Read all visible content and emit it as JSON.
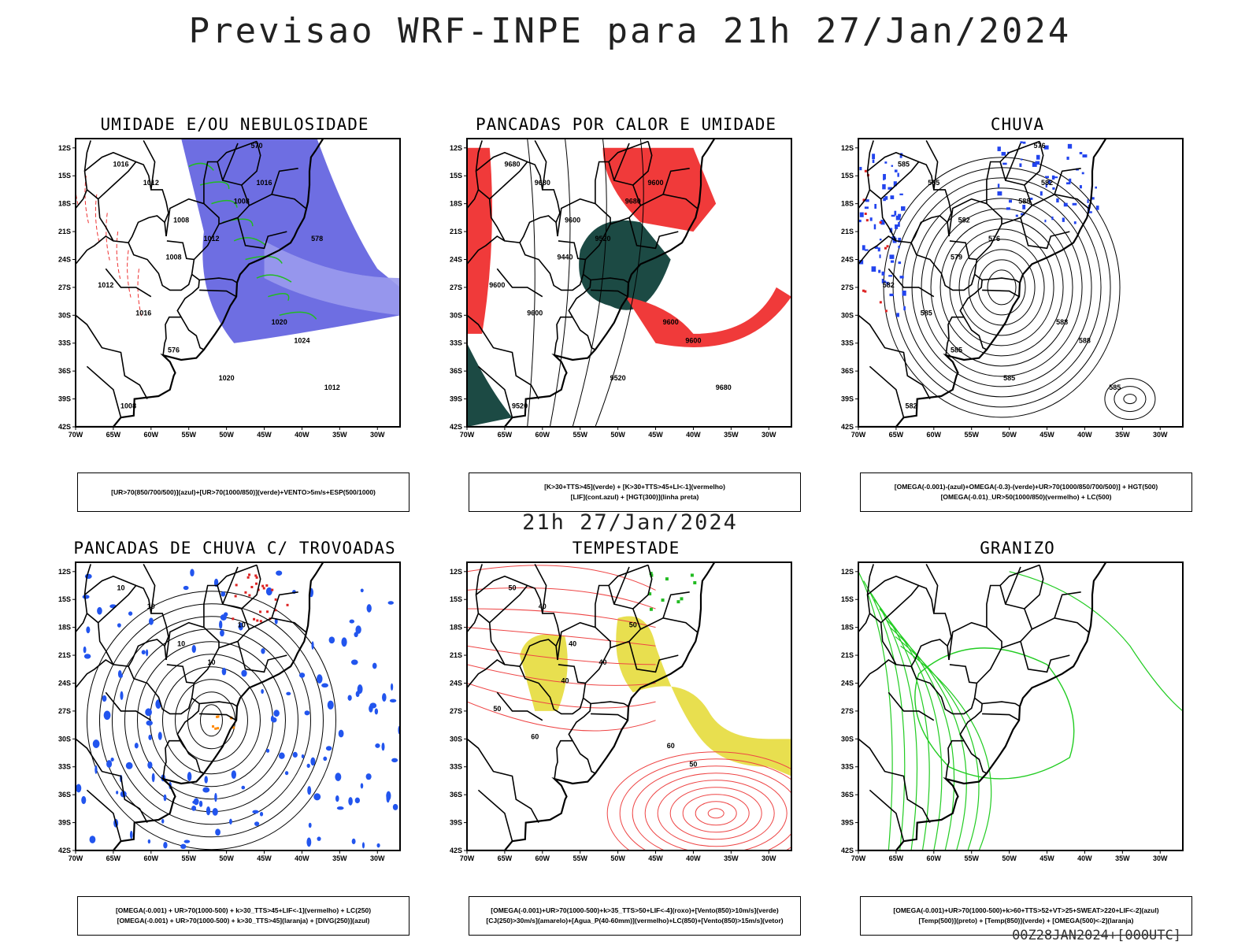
{
  "title": "Previsao WRF-INPE  para 21h 27/Jan/2024",
  "subtitle": "21h 27/Jan/2024",
  "footer": "00Z28JAN2024+[000UTC]",
  "axes": {
    "lat_labels": [
      "12S",
      "15S",
      "18S",
      "21S",
      "24S",
      "27S",
      "30S",
      "33S",
      "36S",
      "39S",
      "42S"
    ],
    "lon_labels": [
      "70W",
      "65W",
      "60W",
      "55W",
      "50W",
      "45W",
      "40W",
      "35W",
      "30W"
    ]
  },
  "panels": [
    {
      "title": "UMIDADE E/OU NEBULOSIDADE",
      "legend": [
        "[UR>70(850/700/500)](azul)+[UR>70(1000/850)](verde)+VENTO>5m/s+ESP(500/1000)"
      ],
      "contour_labels": [
        "1016",
        "1012",
        "1008",
        "1008",
        "1012",
        "1008",
        "1012",
        "1016",
        "1020",
        "1024",
        "1008",
        "1012",
        "1016",
        "1020",
        "570",
        "576",
        "578"
      ],
      "colors": {
        "fill": "#5555dd",
        "fill2": "#9a9aee",
        "line": "#22bb22",
        "accent": "#ee3333"
      }
    },
    {
      "title": "PANCADAS POR CALOR E UMIDADE",
      "legend": [
        "[K>30+TTS>45](verde) + [K>30+TTS>45+LI<-1](vermelho)",
        "[LIF](cont.azul) + [HGT(300)](linha preta)"
      ],
      "contour_labels": [
        "9680",
        "9680",
        "9600",
        "9680",
        "9520",
        "9440",
        "9600",
        "9600",
        "9600",
        "9600",
        "9520",
        "9680",
        "9600",
        "9520"
      ],
      "colors": {
        "fill": "#1c4a44",
        "fill2": "#f03a3a",
        "line": "#2244cc",
        "accent": "#000000"
      }
    },
    {
      "title": "CHUVA",
      "legend": [
        "[OMEGA(-0.001)-(azul)+OMEGA(-0.3)-(verde)+UR>70(1000/850/700/500)] + HGT(500)",
        "[OMEGA(-0.01)_UR>50(1000/850)(vermelho) + LC(500)"
      ],
      "contour_labels": [
        "585",
        "585",
        "582",
        "588",
        "576",
        "579",
        "582",
        "585",
        "588",
        "588",
        "582",
        "585",
        "582",
        "585",
        "576",
        "585"
      ],
      "colors": {
        "fill": "#2244ee",
        "fill2": "#dd2222",
        "line": "#000000",
        "accent": "#000000"
      }
    },
    {
      "title": "PANCADAS DE CHUVA C/ TROVOADAS",
      "legend": [
        "[OMEGA(-0.001) + UR>70(1000-500) + k>30_TTS>45+LIF<-1](vermelho) + LC(250)",
        "[OMEGA(-0.001) + UR>70(1000-500) + k>30_TTS>45](laranja) + [DIVG(250)](azul)"
      ],
      "contour_labels": [
        "10",
        "10",
        "10",
        "10",
        "10"
      ],
      "colors": {
        "fill": "#2255ee",
        "fill2": "#dd2222",
        "line": "#000000",
        "accent": "#ff8800"
      }
    },
    {
      "title": "TEMPESTADE",
      "legend": [
        "[OMEGA(-0.001)+UR>70(1000-500)+k>35_TTS>50+LIF<-4](roxo)+[Vento(850)>10m/s](verde)",
        "[CJ(250)>30m/s](amarelo)+[Agua_P(40-60mm)](vermelho)+LC(850)+[Vento(850)>15m/s](vetor)"
      ],
      "contour_labels": [
        "50",
        "40",
        "40",
        "50",
        "40",
        "40",
        "50",
        "60",
        "60",
        "50"
      ],
      "colors": {
        "fill": "#e6dc3c",
        "fill2": "#22bb22",
        "line": "#ee4444",
        "accent": "#000000"
      }
    },
    {
      "title": "GRANIZO",
      "legend": [
        "[OMEGA(-0.001)+UR>70(1000-500)+k>60+TTS>52+VT>25+SWEAT>220+LIF<-2](azul)",
        "[Temp(500)](preto) + [Temp(850)](verde) + [OMEGA(500)<-2](laranja)"
      ],
      "contour_labels": [],
      "colors": {
        "fill": "#22cc22",
        "fill2": "#22cc22",
        "line": "#22cc22",
        "accent": "#000000"
      }
    }
  ]
}
